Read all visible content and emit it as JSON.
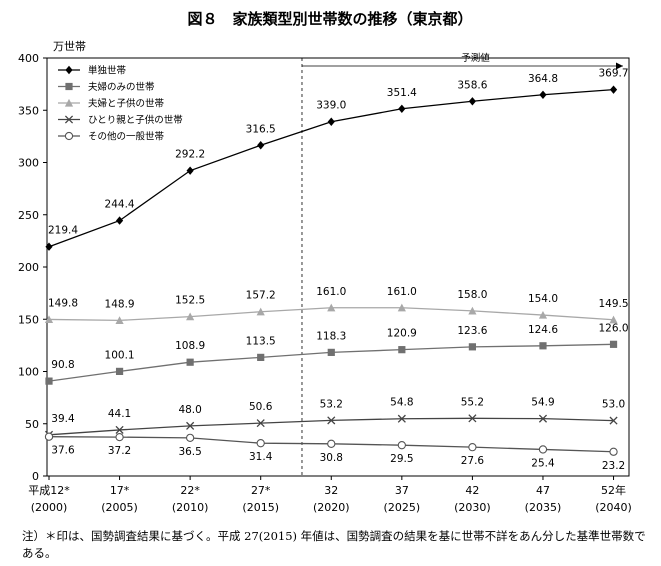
{
  "chart_data": {
    "type": "line",
    "title": "図８　家族類型別世帯数の推移（東京都）",
    "ylabel": "万世帯",
    "ylim": [
      0,
      400
    ],
    "yticks": [
      0,
      50,
      100,
      150,
      200,
      250,
      300,
      350,
      400
    ],
    "categories": [
      {
        "top": "平成12*",
        "bottom": "(2000)"
      },
      {
        "top": "17*",
        "bottom": "(2005)"
      },
      {
        "top": "22*",
        "bottom": "(2010)"
      },
      {
        "top": "27*",
        "bottom": "(2015)"
      },
      {
        "top": "32",
        "bottom": "(2020)"
      },
      {
        "top": "37",
        "bottom": "(2025)"
      },
      {
        "top": "42",
        "bottom": "(2030)"
      },
      {
        "top": "47",
        "bottom": "(2035)"
      },
      {
        "top": "52年",
        "bottom": "(2040)"
      }
    ],
    "projection_label": "予測値",
    "projection_start_index": 4,
    "series": [
      {
        "name": "単独世帯",
        "marker": "diamond",
        "color": "#000000",
        "values": [
          219.4,
          244.4,
          292.2,
          316.5,
          339.0,
          351.4,
          358.6,
          364.8,
          369.7
        ],
        "labels": [
          "219.4",
          "244.4",
          "292.2",
          "316.5",
          "339.0",
          "351.4",
          "358.6",
          "364.8",
          "369.7"
        ]
      },
      {
        "name": "夫婦のみの世帯",
        "marker": "square",
        "color": "#707070",
        "values": [
          90.8,
          100.1,
          108.9,
          113.5,
          118.3,
          120.9,
          123.6,
          124.6,
          126.0
        ],
        "labels": [
          "90.8",
          "100.1",
          "108.9",
          "113.5",
          "118.3",
          "120.9",
          "123.6",
          "124.6",
          "126.0"
        ]
      },
      {
        "name": "夫婦と子供の世帯",
        "marker": "triangle",
        "color": "#a8a8a8",
        "values": [
          149.8,
          148.9,
          152.5,
          157.2,
          161.0,
          161.0,
          158.0,
          154.0,
          149.5
        ],
        "labels": [
          "149.8",
          "148.9",
          "152.5",
          "157.2",
          "161.0",
          "161.0",
          "158.0",
          "154.0",
          "149.5"
        ]
      },
      {
        "name": "ひとり親と子供の世帯",
        "marker": "x",
        "color": "#444444",
        "values": [
          39.4,
          44.1,
          48.0,
          50.6,
          53.2,
          54.8,
          55.2,
          54.9,
          53.0
        ],
        "labels": [
          "39.4",
          "44.1",
          "48.0",
          "50.6",
          "53.2",
          "54.8",
          "55.2",
          "54.9",
          "53.0"
        ]
      },
      {
        "name": "その他の一般世帯",
        "marker": "circle",
        "color": "#555555",
        "values": [
          37.6,
          37.2,
          36.5,
          31.4,
          30.8,
          29.5,
          27.6,
          25.4,
          23.2
        ],
        "labels": [
          "37.6",
          "37.2",
          "36.5",
          "31.4",
          "30.8",
          "29.5",
          "27.6",
          "25.4",
          "23.2"
        ]
      }
    ],
    "legend_position": "top-left"
  },
  "note": "注）＊印は、国勢調査結果に基づく。平成 27(2015) 年値は、国勢調査の結果を基に世帯不詳をあん分した基準世帯数である。"
}
